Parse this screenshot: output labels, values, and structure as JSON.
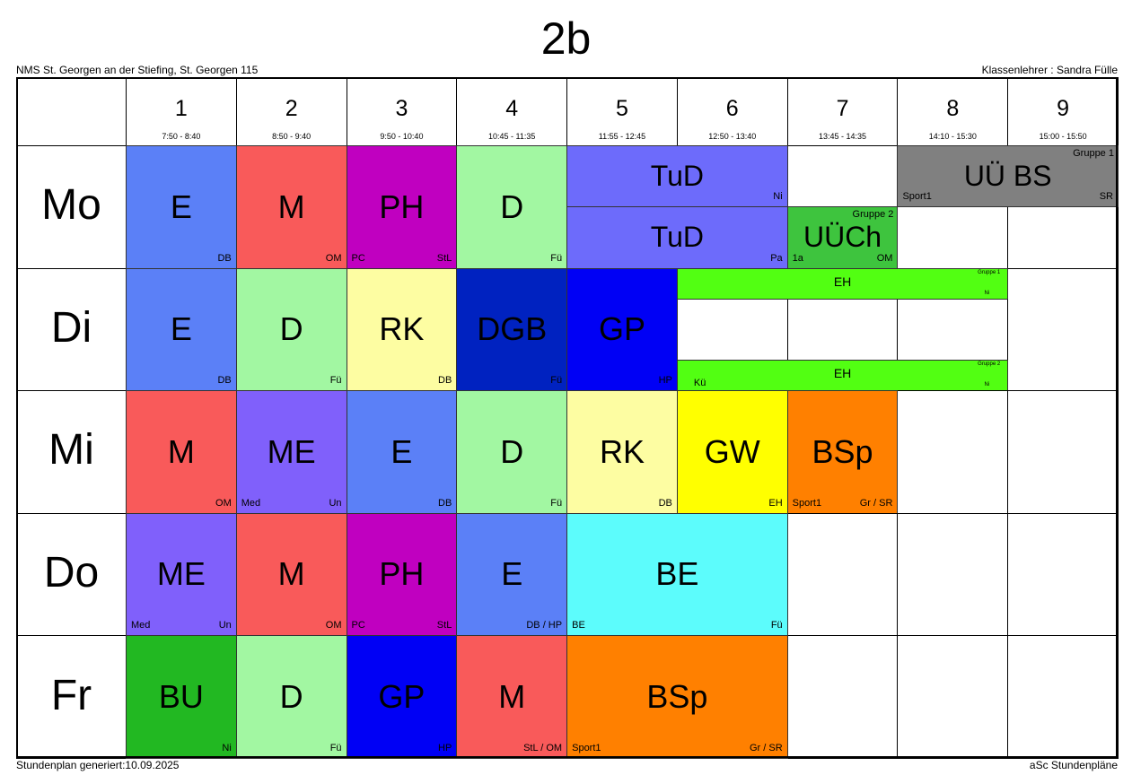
{
  "header": {
    "title": "2b",
    "school": "NMS St. Georgen an der Stiefing, St. Georgen 115",
    "teacher": "Klassenlehrer : Sandra Fülle"
  },
  "periods": [
    {
      "number": "1",
      "time": "7:50 - 8:40"
    },
    {
      "number": "2",
      "time": "8:50 - 9:40"
    },
    {
      "number": "3",
      "time": "9:50 - 10:40"
    },
    {
      "number": "4",
      "time": "10:45 - 11:35"
    },
    {
      "number": "5",
      "time": "11:55 - 12:45"
    },
    {
      "number": "6",
      "time": "12:50 - 13:40"
    },
    {
      "number": "7",
      "time": "13:45 - 14:35"
    },
    {
      "number": "8",
      "time": "14:10 - 15:30"
    },
    {
      "number": "9",
      "time": "15:00 - 15:50"
    }
  ],
  "days": [
    {
      "name": "Mo",
      "lessons": [
        {
          "subject": "E",
          "teacher": "DB",
          "color": "#5b80f7"
        },
        {
          "subject": "M",
          "teacher": "OM",
          "color": "#f95a5a"
        },
        {
          "subject": "PH",
          "room": "PC",
          "teacher": "StL",
          "color": "#c000c0"
        },
        {
          "subject": "D",
          "teacher": "Fü",
          "color": "#a2f7a2"
        },
        {
          "subject": "TuD",
          "teacher": "Ni",
          "color": "#6d6bfb"
        },
        {
          "subject": "TuD",
          "teacher": "Pa",
          "color": "#6d6bfb"
        },
        {
          "subject": "UÜCh",
          "group": "Gruppe 2",
          "room": "1a",
          "teacher": "OM",
          "color": "#3ec43e"
        },
        {
          "subject": "UÜ BS",
          "group": "Gruppe 1",
          "room": "Sport1",
          "teacher": "SR",
          "color": "#808080"
        }
      ]
    },
    {
      "name": "Di",
      "lessons": [
        {
          "subject": "E",
          "teacher": "DB",
          "color": "#5b80f7"
        },
        {
          "subject": "D",
          "teacher": "Fü",
          "color": "#a2f7a2"
        },
        {
          "subject": "RK",
          "teacher": "DB",
          "color": "#fdfda2"
        },
        {
          "subject": "DGB",
          "teacher": "Fü",
          "color": "#0022c0"
        },
        {
          "subject": "GP",
          "teacher": "HP",
          "color": "#0000f5"
        },
        {
          "subject": "EH",
          "group": "Gruppe 1",
          "teacher": "Ni",
          "color": "#52ff12"
        },
        {
          "subject": "EH",
          "group": "Gruppe 2",
          "room": "Kü",
          "teacher": "Ni",
          "color": "#52ff12"
        }
      ]
    },
    {
      "name": "Mi",
      "lessons": [
        {
          "subject": "M",
          "teacher": "OM",
          "color": "#f95a5a"
        },
        {
          "subject": "ME",
          "room": "Med",
          "teacher": "Un",
          "color": "#8060fb"
        },
        {
          "subject": "E",
          "teacher": "DB",
          "color": "#5b80f7"
        },
        {
          "subject": "D",
          "teacher": "Fü",
          "color": "#a2f7a2"
        },
        {
          "subject": "RK",
          "teacher": "DB",
          "color": "#fdfda2"
        },
        {
          "subject": "GW",
          "teacher": "EH",
          "color": "#ffff00"
        },
        {
          "subject": "BSp",
          "room": "Sport1",
          "teacher": "Gr / SR",
          "color": "#ff8000"
        }
      ]
    },
    {
      "name": "Do",
      "lessons": [
        {
          "subject": "ME",
          "room": "Med",
          "teacher": "Un",
          "color": "#8060fb"
        },
        {
          "subject": "M",
          "teacher": "OM",
          "color": "#f95a5a"
        },
        {
          "subject": "PH",
          "room": "PC",
          "teacher": "StL",
          "color": "#c000c0"
        },
        {
          "subject": "E",
          "teacher": "DB / HP",
          "color": "#5b80f7"
        },
        {
          "subject": "BE",
          "room": "BE",
          "teacher": "Fü",
          "color": "#5cfcfc"
        }
      ]
    },
    {
      "name": "Fr",
      "lessons": [
        {
          "subject": "BU",
          "teacher": "Ni",
          "color": "#22b822"
        },
        {
          "subject": "D",
          "teacher": "Fü",
          "color": "#a2f7a2"
        },
        {
          "subject": "GP",
          "teacher": "HP",
          "color": "#0000f5"
        },
        {
          "subject": "M",
          "teacher": "StL / OM",
          "color": "#f95a5a"
        },
        {
          "subject": "BSp",
          "room": "Sport1",
          "teacher": "Gr / SR",
          "color": "#ff8000"
        }
      ]
    }
  ],
  "footer": {
    "generated": "Stundenplan generiert:10.09.2025",
    "brand": "aSc Stundenpläne"
  }
}
